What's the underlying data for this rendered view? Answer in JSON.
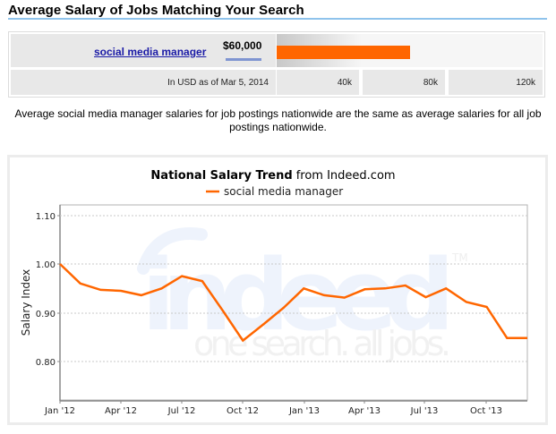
{
  "header": {
    "title": "Average Salary of Jobs Matching Your Search"
  },
  "salary_table": {
    "job_title": "social media manager",
    "salary": "$60,000",
    "as_of": "In USD as of Mar 5, 2014",
    "scale_labels": [
      "40k",
      "80k",
      "120k"
    ],
    "bar_color": "#ff6600",
    "bar_value": 60000,
    "scale_max": 120000
  },
  "summary": {
    "text": "Average social media manager salaries for job postings nationwide are the same as average salaries for all job postings nationwide."
  },
  "chart": {
    "title_bold": "National Salary Trend",
    "title_rest": "from Indeed.com",
    "legend_label": "social media manager",
    "ylabel": "Salary Index",
    "yticks": [
      "1.10",
      "1.00",
      "0.90",
      "0.80"
    ],
    "xticks": [
      "Jan '12",
      "Apr '12",
      "Jul '12",
      "Oct '12",
      "Jan '13",
      "Apr '13",
      "Jul '13",
      "Oct '13"
    ],
    "watermark_brand": "indeed",
    "watermark_tagline": "one search. all jobs.",
    "watermark_tm": "TM",
    "line_color": "#ff6600"
  },
  "chart_data": {
    "type": "line",
    "title": "National Salary Trend from Indeed.com",
    "xlabel": "",
    "ylabel": "Salary Index",
    "ylim": [
      0.72,
      1.12
    ],
    "grid": true,
    "legend_position": "top",
    "x": [
      "Jan '12",
      "Feb '12",
      "Mar '12",
      "Apr '12",
      "May '12",
      "Jun '12",
      "Jul '12",
      "Aug '12",
      "Sep '12",
      "Oct '12",
      "Nov '12",
      "Dec '12",
      "Jan '13",
      "Feb '13",
      "Mar '13",
      "Apr '13",
      "May '13",
      "Jun '13",
      "Jul '13",
      "Aug '13",
      "Sep '13",
      "Oct '13",
      "Nov '13",
      "Dec '13"
    ],
    "series": [
      {
        "name": "social media manager",
        "values": [
          1.0,
          0.96,
          0.947,
          0.945,
          0.936,
          0.95,
          0.975,
          0.965,
          0.905,
          0.843,
          0.876,
          0.91,
          0.95,
          0.936,
          0.931,
          0.948,
          0.95,
          0.956,
          0.932,
          0.95,
          0.922,
          0.912,
          0.848,
          0.848
        ]
      }
    ],
    "ytick_values": [
      0.8,
      0.9,
      1.0,
      1.1
    ]
  }
}
